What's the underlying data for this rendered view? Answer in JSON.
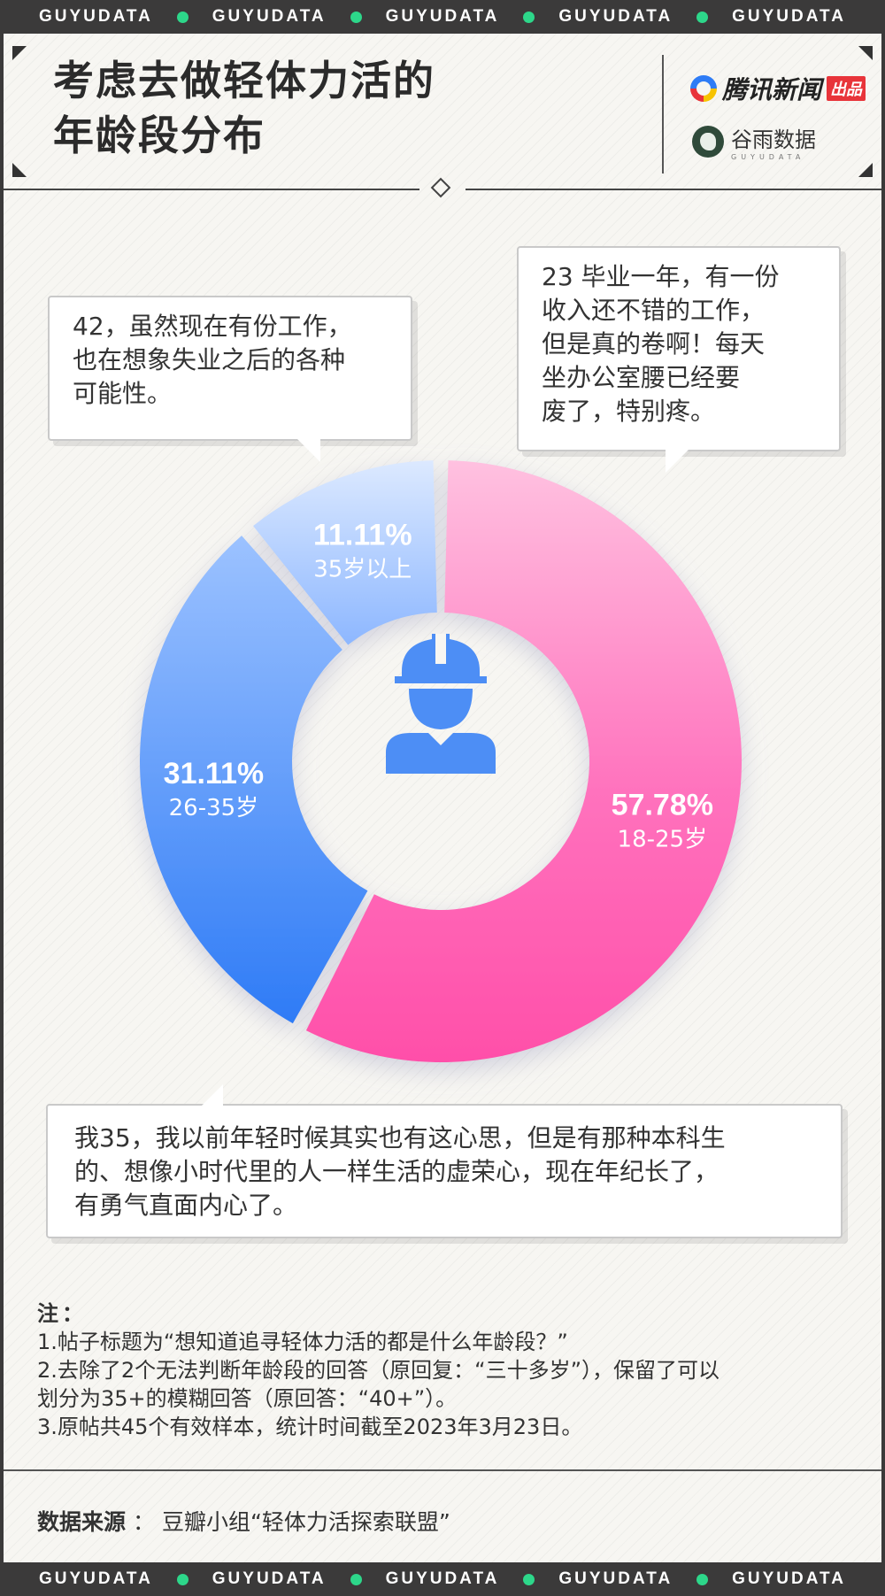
{
  "ticker": [
    "GUYUDATA",
    "GUYUDATA",
    "GUYUDATA",
    "GUYUDATA",
    "GUYUDATA"
  ],
  "header": {
    "title_line1": "考虑去做轻体力活的",
    "title_line2": "年龄段分布",
    "brand_main": "腾讯新闻",
    "brand_tag": "出品",
    "brand_sub": "谷雨数据",
    "brand_sub_en": "GUYUDATA"
  },
  "quotes": {
    "q1": [
      "42，虽然现在有份工作，",
      "也在想象失业之后的各种",
      "可能性。"
    ],
    "q2": [
      "23 毕业一年，有一份",
      "收入还不错的工作，",
      "但是真的卷啊！每天",
      "坐办公室腰已经要",
      "废了，特别疼。"
    ],
    "q3": [
      "我35，我以前年轻时候其实也有这心思，但是有那种本科生",
      "的、想像小时代里的人一样生活的虚荣心，现在年纪长了，",
      "有勇气直面内心了。"
    ]
  },
  "chart_data": {
    "type": "pie",
    "style": "donut",
    "center_icon": "worker-helmet-icon",
    "slices": [
      {
        "label": "18-25岁",
        "value": 57.78,
        "display": "57.78%",
        "color": "#ff5fb1"
      },
      {
        "label": "26-35岁",
        "value": 31.11,
        "display": "31.11%",
        "color": "#3a86f7"
      },
      {
        "label": "35岁以上",
        "value": 11.11,
        "display": "11.11%",
        "color": "#9ec3ff"
      }
    ]
  },
  "notes": {
    "heading": "注：",
    "lines": [
      "1.帖子标题为“想知道追寻轻体力活的都是什么年龄段？”",
      "2.去除了2个无法判断年龄段的回答（原回复：“三十多岁”），保留了可以",
      "划分为35+的模糊回答（原回答：“40+”）。",
      "3.原帖共45个有效样本，统计时间截至2023年3月23日。"
    ]
  },
  "source": {
    "label": "数据来源",
    "sep": "：",
    "text": "豆瓣小组“轻体力活探索联盟”"
  },
  "colors": {
    "ticker_dot": "#2dd78a",
    "pink": "#ff5fb1",
    "blue": "#3a86f7",
    "light_blue": "#9ec3ff",
    "icon_blue": "#4d8ef5"
  }
}
